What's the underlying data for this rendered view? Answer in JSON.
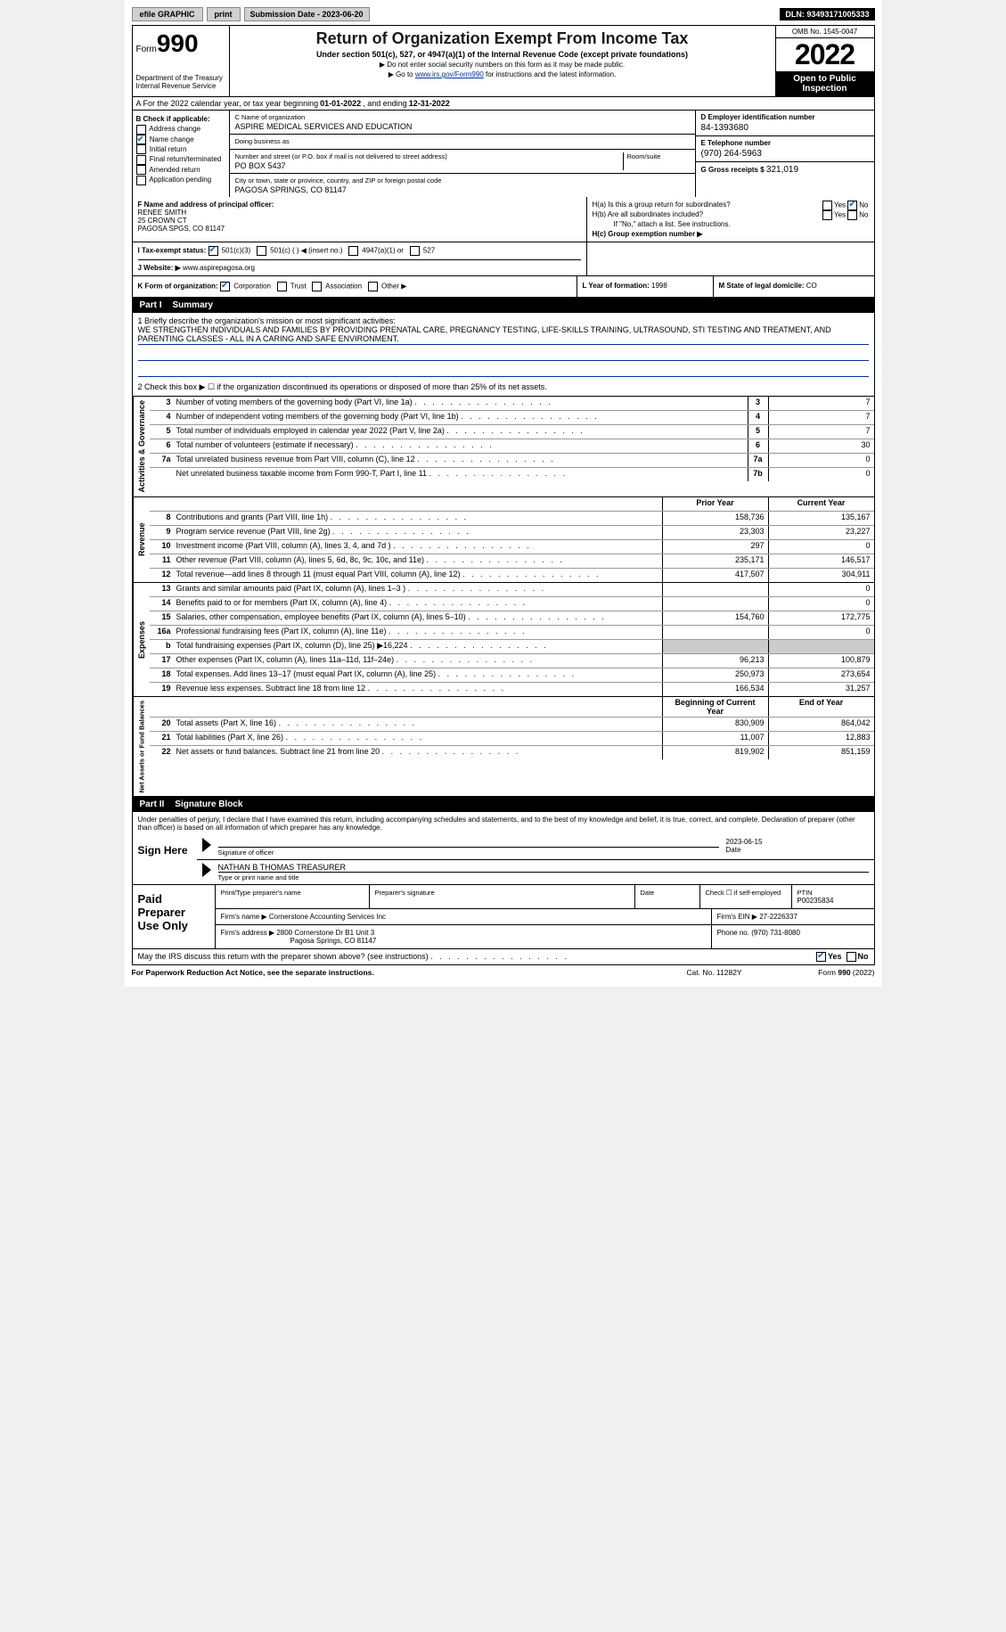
{
  "topbar": {
    "efile": "efile GRAPHIC",
    "print": "print",
    "submission": "Submission Date - 2023-06-20",
    "dln": "DLN: 93493171005333"
  },
  "header": {
    "form_prefix": "Form",
    "form_num": "990",
    "title": "Return of Organization Exempt From Income Tax",
    "subtitle": "Under section 501(c), 527, or 4947(a)(1) of the Internal Revenue Code (except private foundations)",
    "note1": "▶ Do not enter social security numbers on this form as it may be made public.",
    "note2_pre": "▶ Go to ",
    "note2_link": "www.irs.gov/Form990",
    "note2_post": " for instructions and the latest information.",
    "dept": "Department of the Treasury Internal Revenue Service",
    "omb": "OMB No. 1545-0047",
    "year": "2022",
    "open": "Open to Public Inspection"
  },
  "row_a": {
    "text": "A For the 2022 calendar year, or tax year beginning ",
    "begin": "01-01-2022",
    "mid": " , and ending ",
    "end": "12-31-2022"
  },
  "section_b": {
    "label": "B Check if applicable:",
    "items": [
      "Address change",
      "Name change",
      "Initial return",
      "Final return/terminated",
      "Amended return",
      "Application pending"
    ],
    "checked": [
      false,
      true,
      false,
      false,
      false,
      false
    ]
  },
  "section_c": {
    "name_label": "C Name of organization",
    "name": "ASPIRE MEDICAL SERVICES AND EDUCATION",
    "dba_label": "Doing business as",
    "dba": "",
    "addr_label": "Number and street (or P.O. box if mail is not delivered to street address)",
    "room_label": "Room/suite",
    "addr": "PO BOX 5437",
    "city_label": "City or town, state or province, country, and ZIP or foreign postal code",
    "city": "PAGOSA SPRINGS, CO  81147"
  },
  "section_d": {
    "ein_label": "D Employer identification number",
    "ein": "84-1393680",
    "tel_label": "E Telephone number",
    "tel": "(970) 264-5963",
    "gross_label": "G Gross receipts $",
    "gross": "321,019"
  },
  "section_f": {
    "label": "F Name and address of principal officer:",
    "name": "RENEE SMITH",
    "addr1": "25 CROWN CT",
    "addr2": "PAGOSA SPGS, CO  81147"
  },
  "section_h": {
    "ha_label": "H(a)  Is this a group return for subordinates?",
    "hb_label": "H(b)  Are all subordinates included?",
    "hb_note": "If \"No,\" attach a list. See instructions.",
    "hc_label": "H(c)  Group exemption number ▶",
    "ha_yes": false,
    "ha_no": true,
    "hb_yes": false,
    "hb_no": false
  },
  "section_i": {
    "label": "I  Tax-exempt status:",
    "opts": [
      "501(c)(3)",
      "501(c) (   ) ◀ (insert no.)",
      "4947(a)(1) or",
      "527"
    ],
    "checked": [
      true,
      false,
      false,
      false
    ]
  },
  "section_j": {
    "label": "J  Website: ▶",
    "val": "www.aspirepagosa.org"
  },
  "section_k": {
    "label": "K Form of organization:",
    "opts": [
      "Corporation",
      "Trust",
      "Association",
      "Other ▶"
    ],
    "checked": [
      true,
      false,
      false,
      false
    ],
    "l_label": "L Year of formation:",
    "l_val": "1998",
    "m_label": "M State of legal domicile:",
    "m_val": "CO"
  },
  "part1": {
    "tag": "Part I",
    "title": "Summary",
    "q1_label": "1  Briefly describe the organization's mission or most significant activities:",
    "q1_val": "WE STRENGTHEN INDIVIDUALS AND FAMILIES BY PROVIDING PRENATAL CARE, PREGNANCY TESTING, LIFE-SKILLS TRAINING, ULTRASOUND, STI TESTING AND TREATMENT, AND PARENTING CLASSES - ALL IN A CARING AND SAFE ENVIRONMENT.",
    "q2_label": "2  Check this box ▶ ☐ if the organization discontinued its operations or disposed of more than 25% of its net assets.",
    "rows_gov": [
      {
        "n": "3",
        "d": "Number of voting members of the governing body (Part VI, line 1a)",
        "box": "3",
        "v": "7"
      },
      {
        "n": "4",
        "d": "Number of independent voting members of the governing body (Part VI, line 1b)",
        "box": "4",
        "v": "7"
      },
      {
        "n": "5",
        "d": "Total number of individuals employed in calendar year 2022 (Part V, line 2a)",
        "box": "5",
        "v": "7"
      },
      {
        "n": "6",
        "d": "Total number of volunteers (estimate if necessary)",
        "box": "6",
        "v": "30"
      },
      {
        "n": "7a",
        "d": "Total unrelated business revenue from Part VIII, column (C), line 12",
        "box": "7a",
        "v": "0"
      },
      {
        "n": "",
        "d": "Net unrelated business taxable income from Form 990-T, Part I, line 11",
        "box": "7b",
        "v": "0"
      }
    ],
    "py_label": "Prior Year",
    "cy_label": "Current Year",
    "rows_rev": [
      {
        "n": "8",
        "d": "Contributions and grants (Part VIII, line 1h)",
        "py": "158,736",
        "cy": "135,167"
      },
      {
        "n": "9",
        "d": "Program service revenue (Part VIII, line 2g)",
        "py": "23,303",
        "cy": "23,227"
      },
      {
        "n": "10",
        "d": "Investment income (Part VIII, column (A), lines 3, 4, and 7d )",
        "py": "297",
        "cy": "0"
      },
      {
        "n": "11",
        "d": "Other revenue (Part VIII, column (A), lines 5, 6d, 8c, 9c, 10c, and 11e)",
        "py": "235,171",
        "cy": "146,517"
      },
      {
        "n": "12",
        "d": "Total revenue—add lines 8 through 11 (must equal Part VIII, column (A), line 12)",
        "py": "417,507",
        "cy": "304,911"
      }
    ],
    "rows_exp": [
      {
        "n": "13",
        "d": "Grants and similar amounts paid (Part IX, column (A), lines 1–3 )",
        "py": "",
        "cy": "0"
      },
      {
        "n": "14",
        "d": "Benefits paid to or for members (Part IX, column (A), line 4)",
        "py": "",
        "cy": "0"
      },
      {
        "n": "15",
        "d": "Salaries, other compensation, employee benefits (Part IX, column (A), lines 5–10)",
        "py": "154,760",
        "cy": "172,775"
      },
      {
        "n": "16a",
        "d": "Professional fundraising fees (Part IX, column (A), line 11e)",
        "py": "",
        "cy": "0"
      },
      {
        "n": "b",
        "d": "Total fundraising expenses (Part IX, column (D), line 25) ▶16,224",
        "py": "grey",
        "cy": "grey"
      },
      {
        "n": "17",
        "d": "Other expenses (Part IX, column (A), lines 11a–11d, 11f–24e)",
        "py": "96,213",
        "cy": "100,879"
      },
      {
        "n": "18",
        "d": "Total expenses. Add lines 13–17 (must equal Part IX, column (A), line 25)",
        "py": "250,973",
        "cy": "273,654"
      },
      {
        "n": "19",
        "d": "Revenue less expenses. Subtract line 18 from line 12",
        "py": "166,534",
        "cy": "31,257"
      }
    ],
    "na_py": "Beginning of Current Year",
    "na_cy": "End of Year",
    "rows_na": [
      {
        "n": "20",
        "d": "Total assets (Part X, line 16)",
        "py": "830,909",
        "cy": "864,042"
      },
      {
        "n": "21",
        "d": "Total liabilities (Part X, line 26)",
        "py": "11,007",
        "cy": "12,883"
      },
      {
        "n": "22",
        "d": "Net assets or fund balances. Subtract line 21 from line 20",
        "py": "819,902",
        "cy": "851,159"
      }
    ],
    "side_gov": "Activities & Governance",
    "side_rev": "Revenue",
    "side_exp": "Expenses",
    "side_na": "Net Assets or Fund Balances"
  },
  "part2": {
    "tag": "Part II",
    "title": "Signature Block",
    "decl": "Under penalties of perjury, I declare that I have examined this return, including accompanying schedules and statements, and to the best of my knowledge and belief, it is true, correct, and complete. Declaration of preparer (other than officer) is based on all information of which preparer has any knowledge.",
    "sign_here": "Sign Here",
    "sig_officer_label": "Signature of officer",
    "sig_date": "2023-06-15",
    "date_label": "Date",
    "printed": "NATHAN B THOMAS TREASURER",
    "printed_label": "Type or print name and title",
    "paid_label": "Paid Preparer Use Only",
    "prep_name_label": "Print/Type preparer's name",
    "prep_name": "",
    "prep_sig_label": "Preparer's signature",
    "prep_date_label": "Date",
    "prep_date": "",
    "self_emp": "Check ☐ if self-employed",
    "ptin_label": "PTIN",
    "ptin": "P00235834",
    "firm_name_label": "Firm's name    ▶",
    "firm_name": "Cornerstone Accounting Services Inc",
    "firm_ein_label": "Firm's EIN ▶",
    "firm_ein": "27-2226337",
    "firm_addr_label": "Firm's address ▶",
    "firm_addr1": "2800 Cornerstone Dr B1 Unit 3",
    "firm_addr2": "Pagosa Springs, CO  81147",
    "firm_phone_label": "Phone no.",
    "firm_phone": "(970) 731-8080"
  },
  "discuss": {
    "text": "May the IRS discuss this return with the preparer shown above? (see instructions)",
    "yes": true,
    "no": false
  },
  "footer": {
    "l": "For Paperwork Reduction Act Notice, see the separate instructions.",
    "m": "Cat. No. 11282Y",
    "r": "Form 990 (2022)"
  }
}
